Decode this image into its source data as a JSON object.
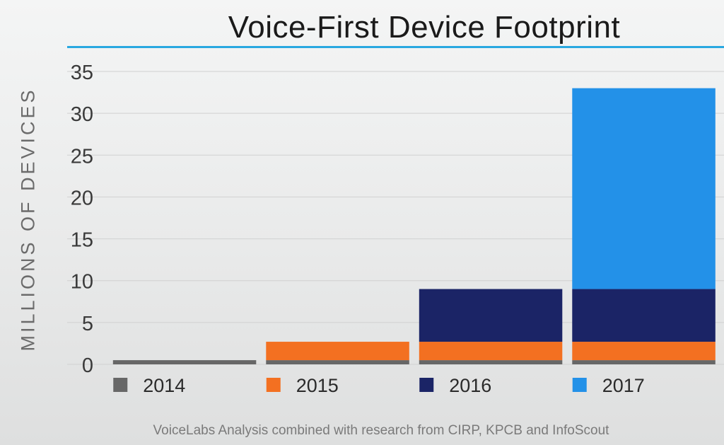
{
  "title": "Voice-First Device Footprint",
  "footer": "VoiceLabs Analysis combined with research from CIRP, KPCB and InfoScout",
  "colors": {
    "title_rule": "#29a8e0",
    "grid": "#d0d0d0",
    "axis_text": "#3a3a3a"
  },
  "chart_data": {
    "type": "bar",
    "stacked": true,
    "title": "Voice-First Device Footprint",
    "ylabel": "MILLIONS OF DEVICES",
    "xlabel": "",
    "ylim": [
      0,
      35
    ],
    "yticks": [
      0,
      5,
      10,
      15,
      20,
      25,
      30,
      35
    ],
    "grid": true,
    "categories": [
      "2014",
      "2015",
      "2016",
      "2017"
    ],
    "series": [
      {
        "name": "2014",
        "color": "#676767",
        "values": [
          0.5,
          0.5,
          0.5,
          0.5
        ]
      },
      {
        "name": "2015",
        "color": "#f37021",
        "values": [
          0,
          2.2,
          2.2,
          2.2
        ]
      },
      {
        "name": "2016",
        "color": "#1b2466",
        "values": [
          0,
          0,
          6.3,
          6.3
        ]
      },
      {
        "name": "2017",
        "color": "#2391e8",
        "values": [
          0,
          0,
          0,
          24
        ]
      }
    ],
    "legend": {
      "placement": "bottom",
      "labels": [
        "2014",
        "2015",
        "2016",
        "2017"
      ]
    }
  }
}
